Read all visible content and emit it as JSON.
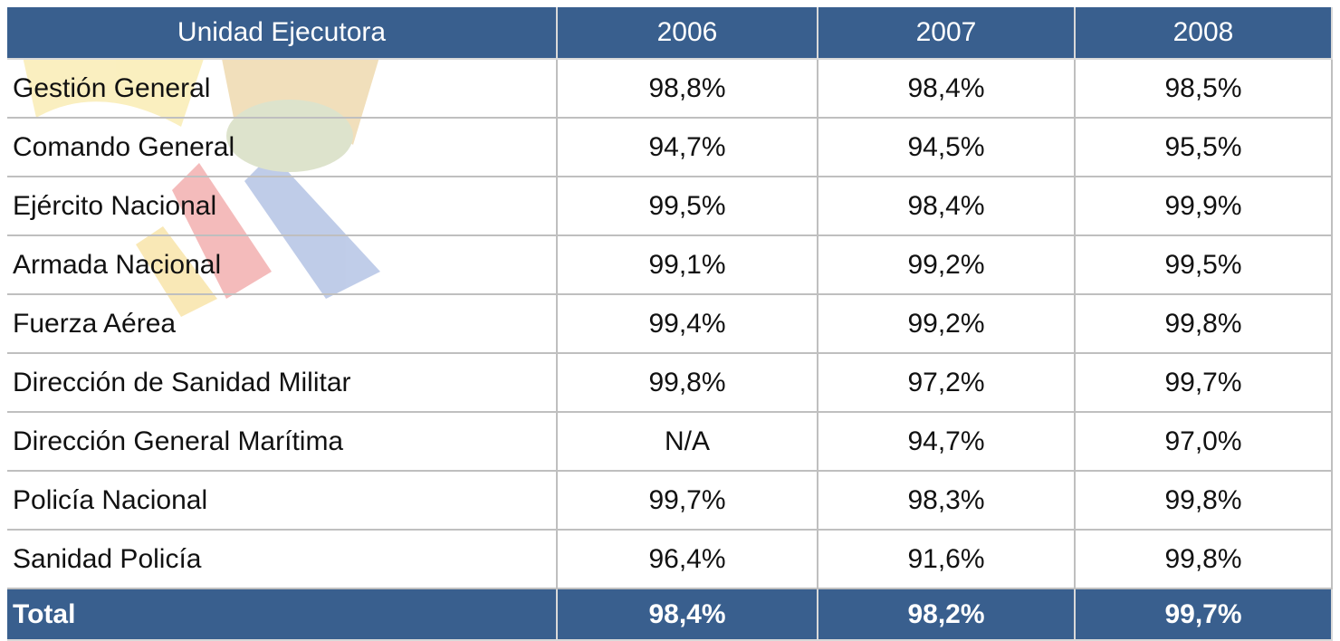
{
  "table": {
    "header": [
      "Unidad Ejecutora",
      "2006",
      "2007",
      "2008"
    ],
    "rows": [
      [
        "Gestión General",
        "98,8%",
        "98,4%",
        "98,5%"
      ],
      [
        "Comando General",
        "94,7%",
        "94,5%",
        "95,5%"
      ],
      [
        "Ejército Nacional",
        "99,5%",
        "98,4%",
        "99,9%"
      ],
      [
        "Armada Nacional",
        "99,1%",
        "99,2%",
        "99,5%"
      ],
      [
        "Fuerza Aérea",
        "99,4%",
        "99,2%",
        "99,8%"
      ],
      [
        "Dirección de Sanidad Militar",
        "99,8%",
        "97,2%",
        "99,7%"
      ],
      [
        "Dirección General Marítima",
        "N/A",
        "94,7%",
        "97,0%"
      ],
      [
        "Policía Nacional",
        "99,7%",
        "98,3%",
        "99,8%"
      ],
      [
        "Sanidad Policía",
        "96,4%",
        "91,6%",
        "99,8%"
      ]
    ],
    "total": [
      "Total",
      "98,4%",
      "98,2%",
      "99,7%"
    ]
  }
}
